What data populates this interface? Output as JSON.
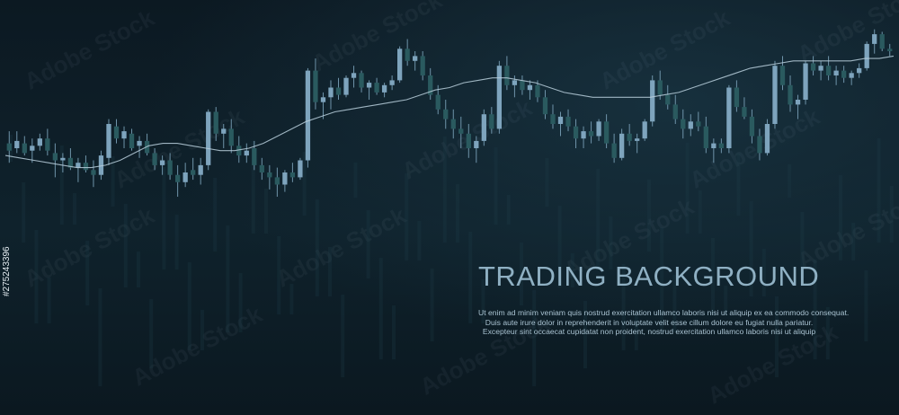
{
  "title": "TRADING BACKGROUND",
  "body_lines": [
    "Ut enim ad minim veniam  quis nostrud exercitation ullamco laboris nisi ut aliquip ex ea commodo consequat.",
    "Duis aute irure dolor in reprehenderit in voluptate velit esse  cillum dolore eu fugiat nulla pariatur.",
    "Excepteur sint occaecat cupidatat non proident, nostrud exercitation ullamco laboris nisi ut aliquip"
  ],
  "watermark_text": "Adobe Stock",
  "stock_id": "#275243396",
  "colors": {
    "background": "#0c1922",
    "bull_candle": "#7ea4bd",
    "bear_candle": "#2a5a5f",
    "wick": "#6f94aa",
    "moving_average": "#b9cfdc",
    "title": "#8fb0c3"
  },
  "chart_data": {
    "type": "candlestick",
    "title": "",
    "xlabel": "",
    "ylabel": "",
    "ylim": [
      0,
      100
    ],
    "grid": false,
    "candles": [
      {
        "o": 52,
        "h": 57,
        "l": 44,
        "c": 49
      },
      {
        "o": 50,
        "h": 57,
        "l": 48,
        "c": 53
      },
      {
        "o": 52,
        "h": 55,
        "l": 47,
        "c": 48
      },
      {
        "o": 49,
        "h": 54,
        "l": 44,
        "c": 51
      },
      {
        "o": 51,
        "h": 56,
        "l": 49,
        "c": 54
      },
      {
        "o": 54,
        "h": 58,
        "l": 47,
        "c": 49
      },
      {
        "o": 48,
        "h": 52,
        "l": 38,
        "c": 45
      },
      {
        "o": 45,
        "h": 48,
        "l": 40,
        "c": 46
      },
      {
        "o": 46,
        "h": 50,
        "l": 41,
        "c": 42
      },
      {
        "o": 42,
        "h": 46,
        "l": 36,
        "c": 44
      },
      {
        "o": 44,
        "h": 47,
        "l": 40,
        "c": 41
      },
      {
        "o": 41,
        "h": 45,
        "l": 34,
        "c": 39
      },
      {
        "o": 39,
        "h": 49,
        "l": 37,
        "c": 47
      },
      {
        "o": 46,
        "h": 62,
        "l": 43,
        "c": 60
      },
      {
        "o": 59,
        "h": 62,
        "l": 52,
        "c": 54
      },
      {
        "o": 54,
        "h": 59,
        "l": 50,
        "c": 57
      },
      {
        "o": 56,
        "h": 58,
        "l": 49,
        "c": 50
      },
      {
        "o": 51,
        "h": 55,
        "l": 46,
        "c": 53
      },
      {
        "o": 53,
        "h": 56,
        "l": 47,
        "c": 48
      },
      {
        "o": 48,
        "h": 50,
        "l": 41,
        "c": 43
      },
      {
        "o": 43,
        "h": 47,
        "l": 39,
        "c": 45
      },
      {
        "o": 45,
        "h": 48,
        "l": 37,
        "c": 39
      },
      {
        "o": 39,
        "h": 43,
        "l": 30,
        "c": 36
      },
      {
        "o": 36,
        "h": 44,
        "l": 34,
        "c": 40
      },
      {
        "o": 41,
        "h": 46,
        "l": 37,
        "c": 39
      },
      {
        "o": 39,
        "h": 46,
        "l": 35,
        "c": 43
      },
      {
        "o": 43,
        "h": 66,
        "l": 41,
        "c": 65
      },
      {
        "o": 65,
        "h": 67,
        "l": 53,
        "c": 56
      },
      {
        "o": 56,
        "h": 60,
        "l": 50,
        "c": 58
      },
      {
        "o": 58,
        "h": 62,
        "l": 48,
        "c": 51
      },
      {
        "o": 51,
        "h": 55,
        "l": 44,
        "c": 47
      },
      {
        "o": 47,
        "h": 52,
        "l": 44,
        "c": 49
      },
      {
        "o": 50,
        "h": 53,
        "l": 41,
        "c": 43
      },
      {
        "o": 43,
        "h": 46,
        "l": 37,
        "c": 40
      },
      {
        "o": 40,
        "h": 43,
        "l": 33,
        "c": 38
      },
      {
        "o": 38,
        "h": 42,
        "l": 30,
        "c": 35
      },
      {
        "o": 35,
        "h": 41,
        "l": 32,
        "c": 40
      },
      {
        "o": 40,
        "h": 44,
        "l": 36,
        "c": 38
      },
      {
        "o": 38,
        "h": 46,
        "l": 37,
        "c": 45
      },
      {
        "o": 45,
        "h": 83,
        "l": 42,
        "c": 82
      },
      {
        "o": 82,
        "h": 87,
        "l": 66,
        "c": 69
      },
      {
        "o": 69,
        "h": 73,
        "l": 62,
        "c": 71
      },
      {
        "o": 71,
        "h": 78,
        "l": 66,
        "c": 75
      },
      {
        "o": 75,
        "h": 79,
        "l": 70,
        "c": 72
      },
      {
        "o": 72,
        "h": 80,
        "l": 71,
        "c": 79
      },
      {
        "o": 79,
        "h": 84,
        "l": 75,
        "c": 81
      },
      {
        "o": 81,
        "h": 82,
        "l": 73,
        "c": 75
      },
      {
        "o": 75,
        "h": 78,
        "l": 70,
        "c": 77
      },
      {
        "o": 77,
        "h": 79,
        "l": 72,
        "c": 73
      },
      {
        "o": 73,
        "h": 77,
        "l": 71,
        "c": 76
      },
      {
        "o": 76,
        "h": 80,
        "l": 74,
        "c": 78
      },
      {
        "o": 78,
        "h": 92,
        "l": 77,
        "c": 91
      },
      {
        "o": 91,
        "h": 95,
        "l": 84,
        "c": 86
      },
      {
        "o": 86,
        "h": 90,
        "l": 82,
        "c": 88
      },
      {
        "o": 88,
        "h": 90,
        "l": 78,
        "c": 80
      },
      {
        "o": 80,
        "h": 83,
        "l": 70,
        "c": 72
      },
      {
        "o": 72,
        "h": 76,
        "l": 64,
        "c": 66
      },
      {
        "o": 66,
        "h": 70,
        "l": 58,
        "c": 62
      },
      {
        "o": 62,
        "h": 66,
        "l": 54,
        "c": 58
      },
      {
        "o": 58,
        "h": 63,
        "l": 50,
        "c": 56
      },
      {
        "o": 56,
        "h": 60,
        "l": 46,
        "c": 50
      },
      {
        "o": 50,
        "h": 55,
        "l": 44,
        "c": 53
      },
      {
        "o": 53,
        "h": 66,
        "l": 51,
        "c": 64
      },
      {
        "o": 64,
        "h": 67,
        "l": 56,
        "c": 58
      },
      {
        "o": 58,
        "h": 86,
        "l": 56,
        "c": 84
      },
      {
        "o": 84,
        "h": 88,
        "l": 74,
        "c": 76
      },
      {
        "o": 76,
        "h": 80,
        "l": 71,
        "c": 78
      },
      {
        "o": 78,
        "h": 80,
        "l": 72,
        "c": 74
      },
      {
        "o": 74,
        "h": 78,
        "l": 70,
        "c": 76
      },
      {
        "o": 76,
        "h": 78,
        "l": 69,
        "c": 71
      },
      {
        "o": 71,
        "h": 74,
        "l": 62,
        "c": 64
      },
      {
        "o": 64,
        "h": 68,
        "l": 58,
        "c": 60
      },
      {
        "o": 60,
        "h": 65,
        "l": 55,
        "c": 63
      },
      {
        "o": 63,
        "h": 66,
        "l": 57,
        "c": 59
      },
      {
        "o": 59,
        "h": 62,
        "l": 50,
        "c": 54
      },
      {
        "o": 54,
        "h": 59,
        "l": 50,
        "c": 57
      },
      {
        "o": 57,
        "h": 61,
        "l": 52,
        "c": 55
      },
      {
        "o": 55,
        "h": 62,
        "l": 53,
        "c": 61
      },
      {
        "o": 61,
        "h": 64,
        "l": 50,
        "c": 52
      },
      {
        "o": 52,
        "h": 56,
        "l": 44,
        "c": 46
      },
      {
        "o": 46,
        "h": 58,
        "l": 45,
        "c": 56
      },
      {
        "o": 56,
        "h": 60,
        "l": 51,
        "c": 53
      },
      {
        "o": 53,
        "h": 56,
        "l": 48,
        "c": 54
      },
      {
        "o": 54,
        "h": 62,
        "l": 53,
        "c": 61
      },
      {
        "o": 61,
        "h": 80,
        "l": 59,
        "c": 78
      },
      {
        "o": 78,
        "h": 82,
        "l": 70,
        "c": 72
      },
      {
        "o": 72,
        "h": 76,
        "l": 66,
        "c": 68
      },
      {
        "o": 68,
        "h": 72,
        "l": 60,
        "c": 62
      },
      {
        "o": 62,
        "h": 66,
        "l": 54,
        "c": 58
      },
      {
        "o": 58,
        "h": 64,
        "l": 55,
        "c": 61
      },
      {
        "o": 61,
        "h": 65,
        "l": 57,
        "c": 59
      },
      {
        "o": 59,
        "h": 63,
        "l": 48,
        "c": 50
      },
      {
        "o": 50,
        "h": 54,
        "l": 44,
        "c": 52
      },
      {
        "o": 52,
        "h": 54,
        "l": 48,
        "c": 50
      },
      {
        "o": 50,
        "h": 76,
        "l": 48,
        "c": 75
      },
      {
        "o": 75,
        "h": 78,
        "l": 65,
        "c": 67
      },
      {
        "o": 67,
        "h": 71,
        "l": 62,
        "c": 63
      },
      {
        "o": 63,
        "h": 66,
        "l": 52,
        "c": 55
      },
      {
        "o": 55,
        "h": 58,
        "l": 45,
        "c": 48
      },
      {
        "o": 48,
        "h": 62,
        "l": 47,
        "c": 60
      },
      {
        "o": 60,
        "h": 86,
        "l": 58,
        "c": 84
      },
      {
        "o": 84,
        "h": 88,
        "l": 74,
        "c": 76
      },
      {
        "o": 76,
        "h": 80,
        "l": 65,
        "c": 68
      },
      {
        "o": 68,
        "h": 72,
        "l": 62,
        "c": 70
      },
      {
        "o": 70,
        "h": 86,
        "l": 68,
        "c": 85
      },
      {
        "o": 85,
        "h": 88,
        "l": 80,
        "c": 82
      },
      {
        "o": 82,
        "h": 86,
        "l": 78,
        "c": 84
      },
      {
        "o": 84,
        "h": 88,
        "l": 78,
        "c": 80
      },
      {
        "o": 80,
        "h": 84,
        "l": 76,
        "c": 82
      },
      {
        "o": 82,
        "h": 84,
        "l": 77,
        "c": 79
      },
      {
        "o": 79,
        "h": 82,
        "l": 76,
        "c": 81
      },
      {
        "o": 81,
        "h": 85,
        "l": 79,
        "c": 83
      },
      {
        "o": 83,
        "h": 94,
        "l": 82,
        "c": 93
      },
      {
        "o": 93,
        "h": 99,
        "l": 89,
        "c": 97
      },
      {
        "o": 97,
        "h": 98,
        "l": 90,
        "c": 91
      },
      {
        "o": 91,
        "h": 93,
        "l": 88,
        "c": 90
      }
    ],
    "moving_average": [
      47,
      46,
      45,
      44,
      43,
      42,
      42,
      43,
      45,
      48,
      51,
      52,
      52,
      51,
      50,
      49,
      49,
      50,
      52,
      55,
      58,
      61,
      63,
      65,
      66,
      67,
      68,
      69,
      70,
      72,
      74,
      75,
      77,
      78,
      79,
      79,
      78,
      77,
      75,
      73,
      72,
      71,
      71,
      71,
      71,
      71,
      72,
      73,
      75,
      77,
      79,
      81,
      83,
      84,
      85,
      86,
      86,
      86,
      86,
      86,
      87,
      87,
      88
    ]
  }
}
